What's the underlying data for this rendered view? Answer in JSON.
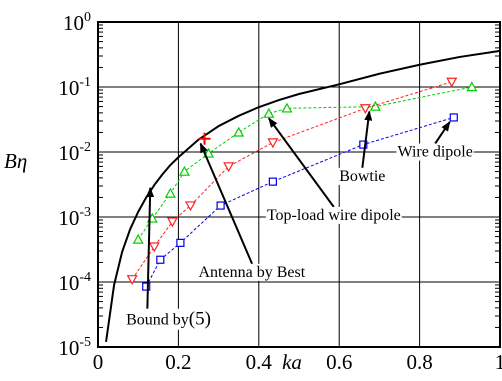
{
  "chart_data": {
    "type": "scatter",
    "xlabel": "ka",
    "ylabel": "Bη",
    "xlim": [
      0,
      1
    ],
    "ylim": [
      1e-05,
      1
    ],
    "yscale": "log",
    "grid": true,
    "x_ticks": [
      {
        "value": 0,
        "label": "0"
      },
      {
        "value": 0.2,
        "label": "0.2"
      },
      {
        "value": 0.4,
        "label": "0.4"
      },
      {
        "value": 0.6,
        "label": "0.6"
      },
      {
        "value": 0.8,
        "label": "0.8"
      },
      {
        "value": 1,
        "label": "1"
      }
    ],
    "y_ticks": [
      {
        "value": 1,
        "base": "10",
        "exp": "0"
      },
      {
        "value": 0.1,
        "base": "10",
        "exp": "-1"
      },
      {
        "value": 0.01,
        "base": "10",
        "exp": "-2"
      },
      {
        "value": 0.001,
        "base": "10",
        "exp": "-3"
      },
      {
        "value": 0.0001,
        "base": "10",
        "exp": "-4"
      },
      {
        "value": 1e-05,
        "base": "10",
        "exp": "-5"
      }
    ],
    "bound_curve": {
      "x": [
        0.02,
        0.04,
        0.06,
        0.08,
        0.1,
        0.12,
        0.14,
        0.16,
        0.18,
        0.2,
        0.25,
        0.3,
        0.35,
        0.4,
        0.45,
        0.5,
        0.6,
        0.7,
        0.8,
        0.9,
        1.0
      ],
      "y": [
        1.2e-05,
        9e-05,
        0.00029,
        0.00065,
        0.0012,
        0.002,
        0.0031,
        0.0045,
        0.0063,
        0.0083,
        0.0155,
        0.025,
        0.036,
        0.049,
        0.063,
        0.078,
        0.11,
        0.16,
        0.22,
        0.29,
        0.36
      ],
      "color": "#000000"
    },
    "series": [
      {
        "marker": "triangle-up",
        "color": "#00cc00",
        "x": [
          0.1,
          0.135,
          0.18,
          0.215,
          0.275,
          0.35,
          0.425,
          0.47,
          0.69,
          0.93
        ],
        "y": [
          0.00045,
          0.00095,
          0.0023,
          0.005,
          0.0095,
          0.02,
          0.039,
          0.047,
          0.05,
          0.1
        ]
      },
      {
        "marker": "triangle-down",
        "color": "#ff2020",
        "x": [
          0.085,
          0.14,
          0.185,
          0.23,
          0.325,
          0.435,
          0.665,
          0.88
        ],
        "y": [
          0.00011,
          0.00035,
          0.00085,
          0.0015,
          0.006,
          0.014,
          0.047,
          0.12
        ]
      },
      {
        "marker": "square",
        "color": "#0000ee",
        "x": [
          0.12,
          0.155,
          0.205,
          0.305,
          0.435,
          0.66,
          0.885
        ],
        "y": [
          8.5e-05,
          0.00022,
          0.0004,
          0.0015,
          0.0035,
          0.013,
          0.034
        ]
      },
      {
        "marker": "plus",
        "color": "#ff0000",
        "x": [
          0.265
        ],
        "y": [
          0.016
        ]
      }
    ],
    "annotations": [
      {
        "text": "Wire dipole",
        "x": 0.745,
        "y": 0.0085,
        "arrow_to": [
          0.875,
          0.029
        ]
      },
      {
        "text": "Bowtie",
        "x": 0.6,
        "y": 0.0036,
        "arrow_to": [
          0.675,
          0.042
        ]
      },
      {
        "text": "Top-load wire dipole",
        "x": 0.42,
        "y": 0.0009,
        "arrow_to": [
          0.425,
          0.033
        ]
      },
      {
        "text": "Antenna by Best",
        "x": 0.25,
        "y": 0.00012,
        "arrow_to": [
          0.255,
          0.0135
        ]
      },
      {
        "text": "Bound by",
        "paren": "(5)",
        "x": 0.07,
        "y": 2.2e-05,
        "arrow_to": [
          0.13,
          0.0028
        ]
      }
    ]
  }
}
